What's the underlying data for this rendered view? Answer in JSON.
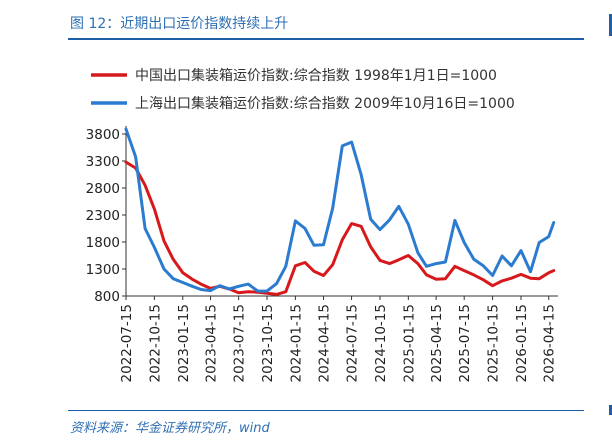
{
  "header": {
    "figure_title": "图 12：近期出口运价指数持续上升"
  },
  "source": {
    "text": "资料来源：华金证券研究所，wind"
  },
  "colors": {
    "accent": "#1f5fa8",
    "series_red": "#d7191c",
    "series_blue": "#2b7bd1"
  },
  "chart_data": {
    "type": "line",
    "grid": false,
    "legend_position": "top",
    "xlabel": "",
    "ylabel": "",
    "ylim": [
      800,
      3800
    ],
    "yticks": [
      800,
      1300,
      1800,
      2300,
      2800,
      3300,
      3800
    ],
    "xlim": [
      "2022-07-15",
      "2026-05-15"
    ],
    "xticks": [
      "2022-07-15",
      "2022-10-15",
      "2023-01-15",
      "2023-04-15",
      "2023-07-15",
      "2023-10-15",
      "2024-01-15",
      "2024-04-15",
      "2024-07-15",
      "2024-10-15",
      "2025-01-15",
      "2025-04-15",
      "2025-07-15",
      "2025-10-15",
      "2026-01-15",
      "2026-04-15"
    ],
    "series": [
      {
        "name": "中国出口集装箱运价指数:综合指数 1998年1月1日=1000",
        "color": "#d7191c",
        "points": [
          [
            "2022-07-15",
            3280
          ],
          [
            "2022-08-15",
            3170
          ],
          [
            "2022-09-15",
            2850
          ],
          [
            "2022-10-15",
            2410
          ],
          [
            "2022-11-15",
            1820
          ],
          [
            "2022-12-15",
            1480
          ],
          [
            "2023-01-15",
            1230
          ],
          [
            "2023-02-15",
            1110
          ],
          [
            "2023-03-15",
            1020
          ],
          [
            "2023-04-15",
            940
          ],
          [
            "2023-05-15",
            980
          ],
          [
            "2023-06-15",
            930
          ],
          [
            "2023-07-15",
            860
          ],
          [
            "2023-08-15",
            880
          ],
          [
            "2023-09-15",
            870
          ],
          [
            "2023-10-15",
            850
          ],
          [
            "2023-11-15",
            830
          ],
          [
            "2023-12-15",
            880
          ],
          [
            "2024-01-15",
            1360
          ],
          [
            "2024-02-15",
            1420
          ],
          [
            "2024-03-15",
            1260
          ],
          [
            "2024-04-15",
            1180
          ],
          [
            "2024-05-15",
            1380
          ],
          [
            "2024-06-15",
            1840
          ],
          [
            "2024-07-15",
            2140
          ],
          [
            "2024-08-15",
            2090
          ],
          [
            "2024-09-15",
            1710
          ],
          [
            "2024-10-15",
            1460
          ],
          [
            "2024-11-15",
            1400
          ],
          [
            "2024-12-15",
            1470
          ],
          [
            "2025-01-15",
            1550
          ],
          [
            "2025-02-15",
            1400
          ],
          [
            "2025-03-15",
            1190
          ],
          [
            "2025-04-15",
            1110
          ],
          [
            "2025-05-15",
            1120
          ],
          [
            "2025-06-15",
            1350
          ],
          [
            "2025-07-15",
            1270
          ],
          [
            "2025-08-15",
            1190
          ],
          [
            "2025-09-15",
            1100
          ],
          [
            "2025-10-15",
            990
          ],
          [
            "2025-11-15",
            1080
          ],
          [
            "2025-12-15",
            1130
          ],
          [
            "2026-01-15",
            1200
          ],
          [
            "2026-02-15",
            1130
          ],
          [
            "2026-03-15",
            1120
          ],
          [
            "2026-04-15",
            1230
          ],
          [
            "2026-05-01",
            1270
          ]
        ]
      },
      {
        "name": "上海出口集装箱运价指数:综合指数 2009年10月16日=1000",
        "color": "#2b7bd1",
        "points": [
          [
            "2022-07-15",
            3890
          ],
          [
            "2022-08-15",
            3380
          ],
          [
            "2022-09-15",
            2050
          ],
          [
            "2022-10-15",
            1700
          ],
          [
            "2022-11-15",
            1300
          ],
          [
            "2022-12-15",
            1120
          ],
          [
            "2023-01-15",
            1050
          ],
          [
            "2023-02-15",
            980
          ],
          [
            "2023-03-15",
            920
          ],
          [
            "2023-04-15",
            900
          ],
          [
            "2023-05-15",
            990
          ],
          [
            "2023-06-15",
            930
          ],
          [
            "2023-07-15",
            980
          ],
          [
            "2023-08-15",
            1020
          ],
          [
            "2023-09-15",
            890
          ],
          [
            "2023-10-15",
            890
          ],
          [
            "2023-11-15",
            1030
          ],
          [
            "2023-12-15",
            1350
          ],
          [
            "2024-01-15",
            2190
          ],
          [
            "2024-02-15",
            2050
          ],
          [
            "2024-03-15",
            1740
          ],
          [
            "2024-04-15",
            1750
          ],
          [
            "2024-05-15",
            2430
          ],
          [
            "2024-06-15",
            3580
          ],
          [
            "2024-07-15",
            3650
          ],
          [
            "2024-08-15",
            3050
          ],
          [
            "2024-09-15",
            2220
          ],
          [
            "2024-10-15",
            2030
          ],
          [
            "2024-11-15",
            2210
          ],
          [
            "2024-12-15",
            2460
          ],
          [
            "2025-01-15",
            2130
          ],
          [
            "2025-02-15",
            1600
          ],
          [
            "2025-03-15",
            1350
          ],
          [
            "2025-04-15",
            1400
          ],
          [
            "2025-05-15",
            1430
          ],
          [
            "2025-06-15",
            2200
          ],
          [
            "2025-07-15",
            1790
          ],
          [
            "2025-08-15",
            1480
          ],
          [
            "2025-09-15",
            1360
          ],
          [
            "2025-10-15",
            1180
          ],
          [
            "2025-11-15",
            1540
          ],
          [
            "2025-12-15",
            1360
          ],
          [
            "2026-01-15",
            1640
          ],
          [
            "2026-02-15",
            1250
          ],
          [
            "2026-03-15",
            1790
          ],
          [
            "2026-04-15",
            1900
          ],
          [
            "2026-05-01",
            2160
          ]
        ]
      }
    ]
  }
}
